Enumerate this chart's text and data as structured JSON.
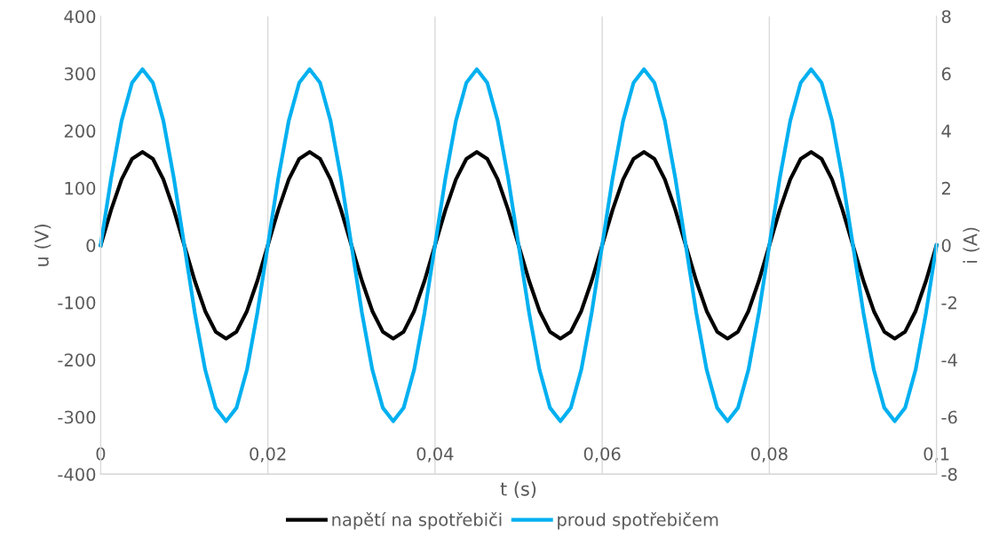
{
  "chart_data": {
    "type": "line",
    "xlabel": "t (s)",
    "ylabel": "u (V)",
    "y2label": "i (A)",
    "x": [
      0,
      0.00125,
      0.0025,
      0.00375,
      0.005,
      0.00625,
      0.0075,
      0.00875,
      0.01,
      0.01125,
      0.0125,
      0.01375,
      0.015,
      0.01625,
      0.0175,
      0.01875,
      0.02,
      0.02125,
      0.0225,
      0.02375,
      0.025,
      0.02625,
      0.0275,
      0.02875,
      0.03,
      0.03125,
      0.0325,
      0.03375,
      0.035,
      0.03625,
      0.0375,
      0.03875,
      0.04,
      0.04125,
      0.0425,
      0.04375,
      0.045,
      0.04625,
      0.0475,
      0.04875,
      0.05,
      0.05125,
      0.0525,
      0.05375,
      0.055,
      0.05625,
      0.0575,
      0.05875,
      0.06,
      0.06125,
      0.0625,
      0.06375,
      0.065,
      0.06625,
      0.0675,
      0.06875,
      0.07,
      0.07125,
      0.0725,
      0.07375,
      0.075,
      0.07625,
      0.0775,
      0.07875,
      0.08,
      0.08125,
      0.0825,
      0.08375,
      0.085,
      0.08625,
      0.0875,
      0.08875,
      0.09,
      0.09125,
      0.0925,
      0.09375,
      0.095,
      0.09625,
      0.0975,
      0.09875,
      0.1
    ],
    "series": [
      {
        "name": "napětí na spotřebiči",
        "color": "#000000",
        "values": [
          0,
          62,
          115,
          151,
          163,
          151,
          115,
          62,
          0,
          -62,
          -115,
          -151,
          -163,
          -151,
          -115,
          -62,
          0,
          62,
          115,
          151,
          163,
          151,
          115,
          62,
          0,
          -62,
          -115,
          -151,
          -163,
          -151,
          -115,
          -62,
          0,
          62,
          115,
          151,
          163,
          151,
          115,
          62,
          0,
          -62,
          -115,
          -151,
          -163,
          -151,
          -115,
          -62,
          0,
          62,
          115,
          151,
          163,
          151,
          115,
          62,
          0,
          -62,
          -115,
          -151,
          -163,
          -151,
          -115,
          -62,
          0,
          62,
          115,
          151,
          163,
          151,
          115,
          62,
          0,
          -62,
          -115,
          -151,
          -163,
          -151,
          -115,
          -62,
          0
        ]
      },
      {
        "name": "proud spotřebičem",
        "color": "#00b0f0",
        "axis": "y2",
        "values": [
          0,
          2.35,
          4.35,
          5.68,
          6.15,
          5.68,
          4.35,
          2.35,
          0,
          -2.35,
          -4.35,
          -5.68,
          -6.15,
          -5.68,
          -4.35,
          -2.35,
          0,
          2.35,
          4.35,
          5.68,
          6.15,
          5.68,
          4.35,
          2.35,
          0,
          -2.35,
          -4.35,
          -5.68,
          -6.15,
          -5.68,
          -4.35,
          -2.35,
          0,
          2.35,
          4.35,
          5.68,
          6.15,
          5.68,
          4.35,
          2.35,
          0,
          -2.35,
          -4.35,
          -5.68,
          -6.15,
          -5.68,
          -4.35,
          -2.35,
          0,
          2.35,
          4.35,
          5.68,
          6.15,
          5.68,
          4.35,
          2.35,
          0,
          -2.35,
          -4.35,
          -5.68,
          -6.15,
          -5.68,
          -4.35,
          -2.35,
          0,
          2.35,
          4.35,
          5.68,
          6.15,
          5.68,
          4.35,
          2.35,
          0,
          -2.35,
          -4.35,
          -5.68,
          -6.15,
          -5.68,
          -4.35,
          -2.35,
          0
        ]
      }
    ],
    "xlim": [
      0,
      0.1
    ],
    "xticks": [
      {
        "value": 0,
        "label": "0"
      },
      {
        "value": 0.02,
        "label": "0,02"
      },
      {
        "value": 0.04,
        "label": "0,04"
      },
      {
        "value": 0.06,
        "label": "0,06"
      },
      {
        "value": 0.08,
        "label": "0,08"
      },
      {
        "value": 0.1,
        "label": "0,1"
      }
    ],
    "ylim": [
      -400,
      400
    ],
    "yticks": [
      -400,
      -300,
      -200,
      -100,
      0,
      100,
      200,
      300,
      400
    ],
    "y2lim": [
      -8,
      8
    ],
    "y2ticks": [
      -8,
      -6,
      -4,
      -2,
      0,
      2,
      4,
      6,
      8
    ],
    "grid": "x",
    "legend": "bottom",
    "marker": "none",
    "line_style": "solid"
  }
}
